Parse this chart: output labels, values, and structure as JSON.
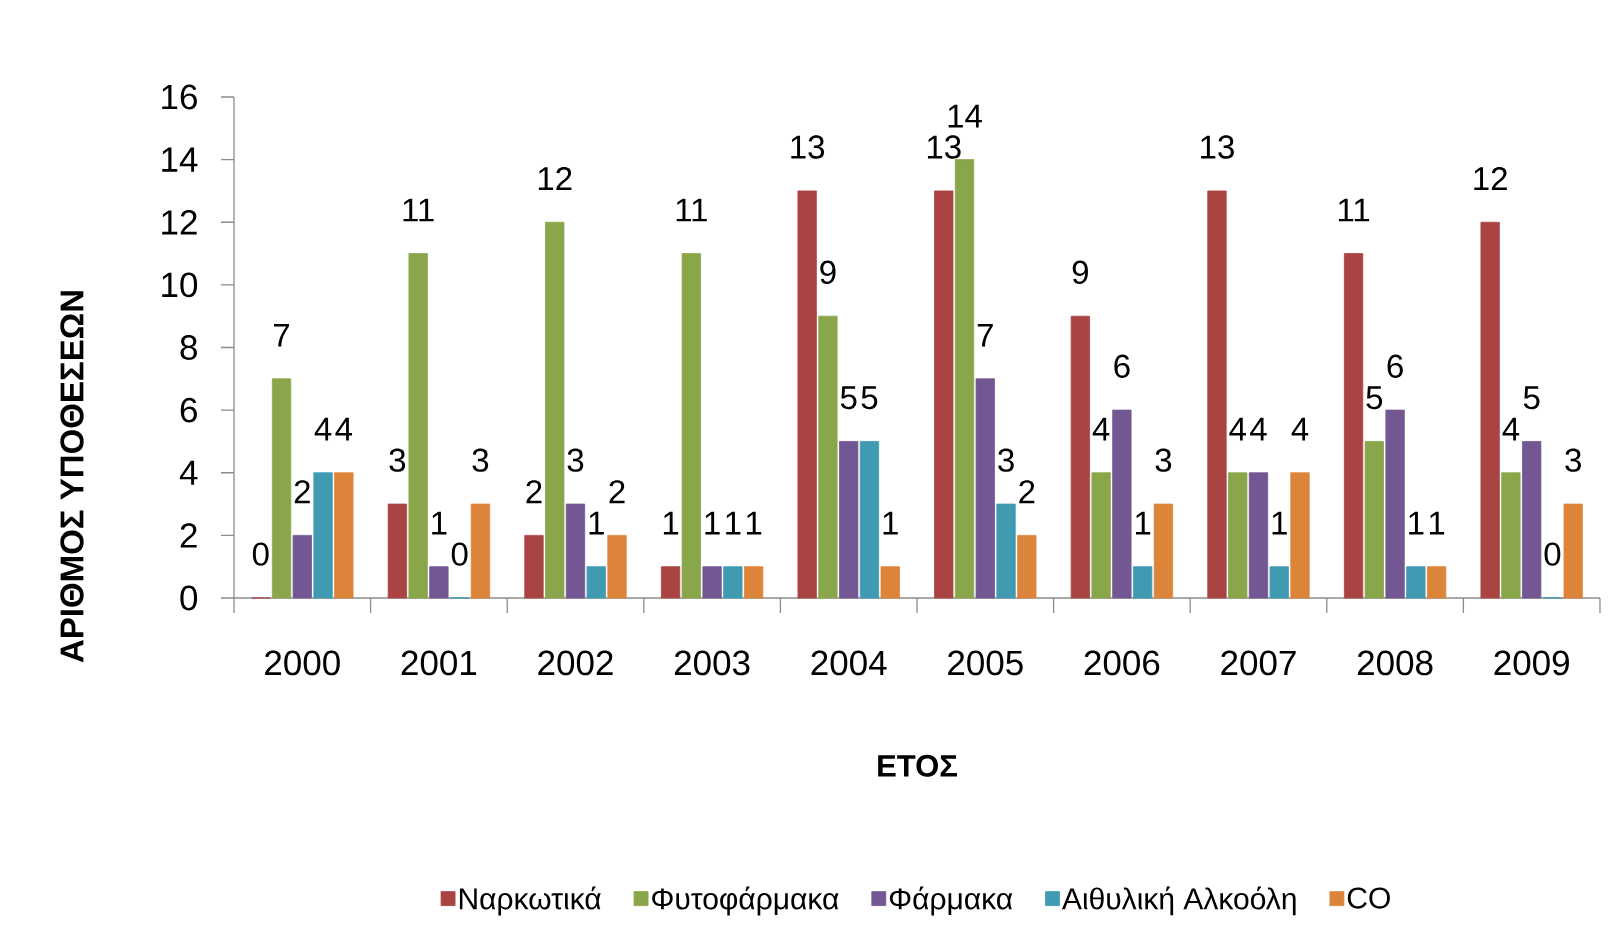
{
  "chart_data": {
    "type": "bar",
    "xlabel": "ΕΤΟΣ",
    "ylabel": "ΑΡΙΘΜΟΣ ΥΠΟΘΕΣΕΩΝ",
    "categories": [
      "2000",
      "2001",
      "2002",
      "2003",
      "2004",
      "2005",
      "2006",
      "2007",
      "2008",
      "2009"
    ],
    "series": [
      {
        "name": "Ναρκωτικά",
        "color": "#a94442",
        "values": [
          0,
          3,
          2,
          1,
          13,
          13,
          9,
          13,
          11,
          12
        ]
      },
      {
        "name": "Φυτοφάρμακα",
        "color": "#8aa64a",
        "values": [
          7,
          11,
          12,
          11,
          9,
          14,
          4,
          4,
          5,
          4
        ]
      },
      {
        "name": "Φάρμακα",
        "color": "#735792",
        "values": [
          2,
          1,
          3,
          1,
          5,
          7,
          6,
          4,
          6,
          5
        ]
      },
      {
        "name": "Αιθυλική Αλκοόλη",
        "color": "#3f9ab2",
        "values": [
          4,
          0,
          1,
          1,
          5,
          3,
          1,
          1,
          1,
          0
        ]
      },
      {
        "name": "CO",
        "color": "#dd843b",
        "values": [
          4,
          3,
          2,
          1,
          1,
          2,
          3,
          4,
          1,
          3
        ]
      }
    ],
    "ylim": [
      0,
      16
    ],
    "yticks": [
      0,
      2,
      4,
      6,
      8,
      10,
      12,
      14,
      16
    ],
    "data_labels": true,
    "legend": "bottom"
  }
}
